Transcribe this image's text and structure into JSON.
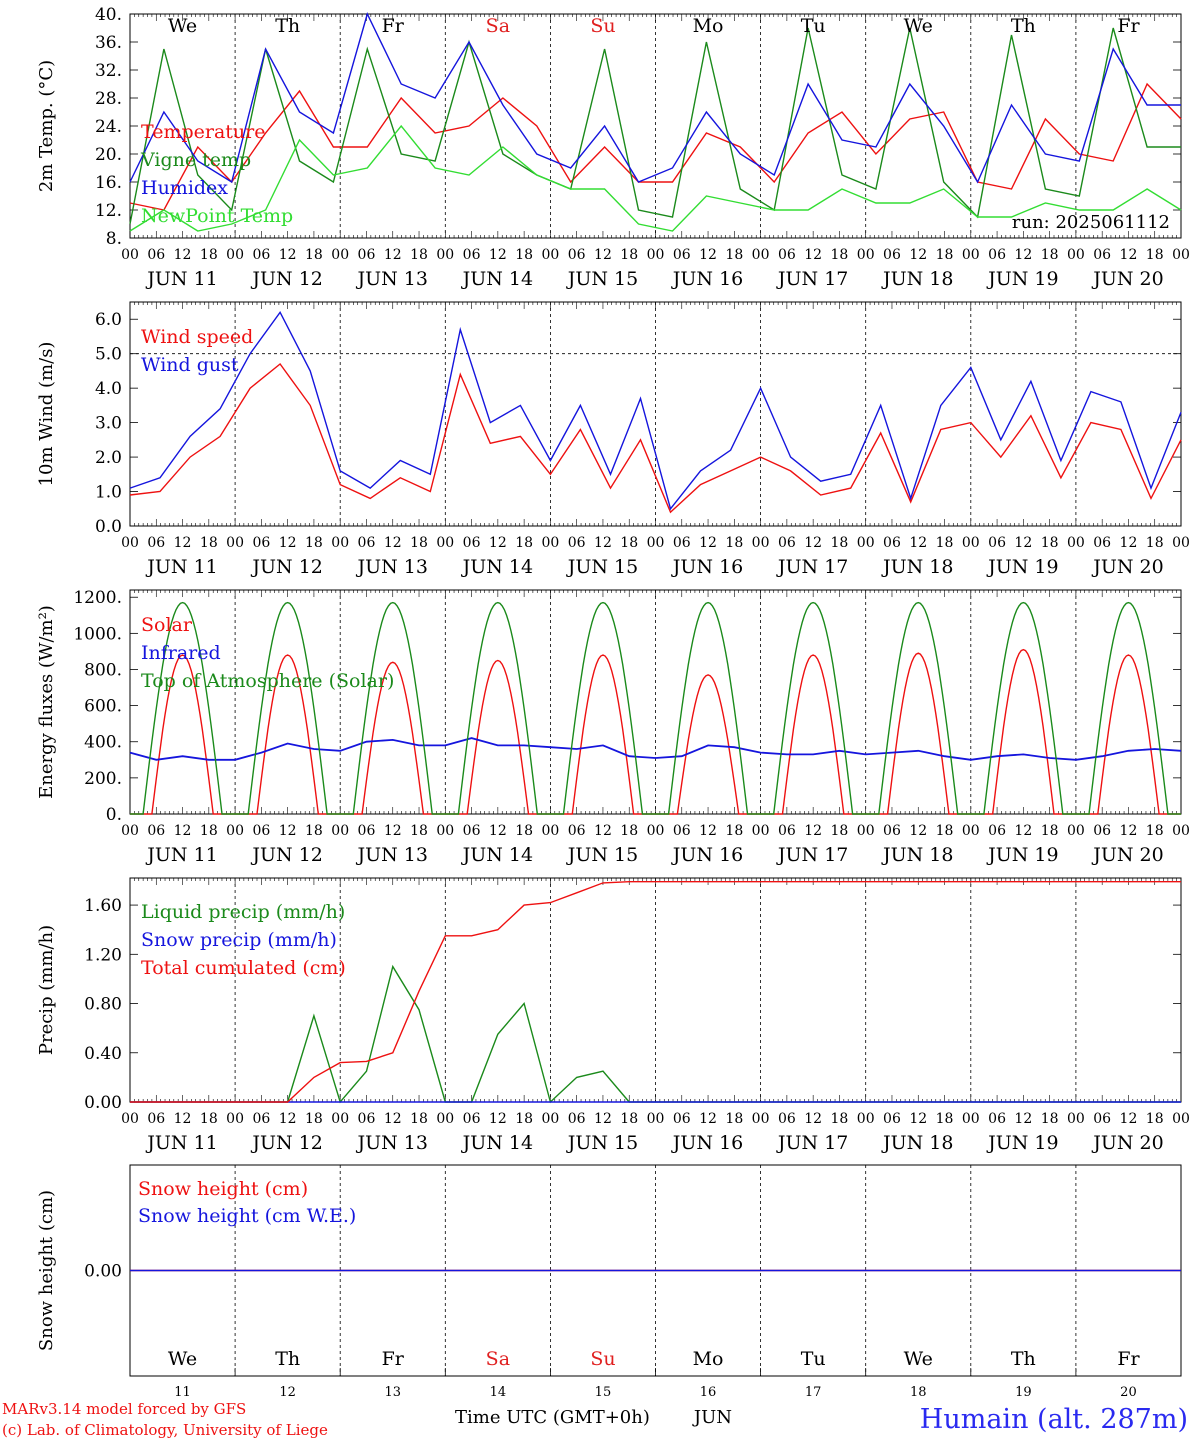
{
  "days": [
    "11",
    "12",
    "13",
    "14",
    "15",
    "16",
    "17",
    "18",
    "19",
    "20"
  ],
  "month": "JUN",
  "weekdays": [
    "We",
    "Th",
    "Fr",
    "Sa",
    "Su",
    "Mo",
    "Tu",
    "We",
    "Th",
    "Fr"
  ],
  "weekday_colors": [
    "#000000",
    "#000000",
    "#000000",
    "#e02020",
    "#e02020",
    "#000000",
    "#000000",
    "#000000",
    "#000000",
    "#000000"
  ],
  "hour_labels": [
    "00",
    "06",
    "12",
    "18"
  ],
  "run_label": "run: 2025061112",
  "footer": {
    "model": "MARv3.14 model forced by GFS",
    "copyright": "(c) Lab. of Climatology, University of Liege",
    "time_axis": "Time UTC (GMT+0h)",
    "month": "JUN",
    "station": "Humain (alt. 287m)"
  },
  "colors": {
    "red": "#ee1111",
    "green": "#1b8a1b",
    "blue": "#1515dd",
    "lightgreen": "#33dd33"
  },
  "chart_data": [
    {
      "type": "line",
      "ylabel": "2m Temp. (°C)",
      "ylim": [
        8,
        40
      ],
      "yticks": [
        "40.",
        "36.",
        "32.",
        "28.",
        "24.",
        "20.",
        "16.",
        "12.",
        "8."
      ],
      "hours_per_point": 6,
      "series": [
        {
          "name": "Temperature",
          "color": "red",
          "values": [
            13,
            12,
            21,
            16,
            23,
            29,
            21,
            21,
            28,
            23,
            24,
            28,
            24,
            16,
            21,
            16,
            16,
            23,
            21,
            16,
            23,
            26,
            20,
            25,
            26,
            16,
            15,
            25,
            20,
            19,
            30,
            25
          ]
        },
        {
          "name": "Vigne temp",
          "color": "green",
          "values": [
            10,
            35,
            17,
            12,
            35,
            19,
            16,
            35,
            20,
            19,
            36,
            20,
            17,
            15,
            35,
            12,
            11,
            36,
            15,
            12,
            38,
            17,
            15,
            38,
            16,
            11,
            37,
            15,
            14,
            38,
            21,
            21
          ]
        },
        {
          "name": "Humidex",
          "color": "blue",
          "values": [
            16,
            26,
            19,
            16,
            35,
            26,
            23,
            40,
            30,
            28,
            36,
            27,
            20,
            18,
            24,
            16,
            18,
            26,
            20,
            17,
            30,
            22,
            21,
            30,
            24,
            16,
            27,
            20,
            19,
            35,
            27,
            27
          ]
        },
        {
          "name": "NewPoint Temp",
          "color": "lightgreen",
          "values": [
            9,
            12,
            9,
            10,
            12,
            22,
            17,
            18,
            24,
            18,
            17,
            21,
            17,
            15,
            15,
            10,
            9,
            14,
            13,
            12,
            12,
            15,
            13,
            13,
            15,
            11,
            11,
            13,
            12,
            12,
            15,
            12
          ]
        }
      ]
    },
    {
      "type": "line",
      "ylabel": "10m Wind (m/s)",
      "ylim": [
        0,
        6.5
      ],
      "yticks": [
        "6.0",
        "5.0",
        "4.0",
        "3.0",
        "2.0",
        "1.0",
        "0.0"
      ],
      "refline": 5.0,
      "hours_per_point": 6,
      "series": [
        {
          "name": "Wind speed",
          "color": "red",
          "values": [
            0.9,
            1.0,
            2.0,
            2.6,
            4.0,
            4.7,
            3.5,
            1.2,
            0.8,
            1.4,
            1.0,
            4.4,
            2.4,
            2.6,
            1.5,
            2.8,
            1.1,
            2.5,
            0.4,
            1.2,
            1.6,
            2.0,
            1.6,
            0.9,
            1.1,
            2.7,
            0.7,
            2.8,
            3.0,
            2.0,
            3.2,
            1.4,
            3.0,
            2.8,
            0.8,
            2.5
          ]
        },
        {
          "name": "Wind gust",
          "color": "blue",
          "values": [
            1.1,
            1.4,
            2.6,
            3.4,
            5.0,
            6.2,
            4.5,
            1.6,
            1.1,
            1.9,
            1.5,
            5.7,
            3.0,
            3.5,
            1.9,
            3.5,
            1.5,
            3.7,
            0.5,
            1.6,
            2.2,
            4.0,
            2.0,
            1.3,
            1.5,
            3.5,
            0.8,
            3.5,
            4.6,
            2.5,
            4.2,
            1.9,
            3.9,
            3.6,
            1.1,
            3.3
          ]
        }
      ]
    },
    {
      "type": "line",
      "ylabel": "Energy fluxes (W/m²)",
      "ylim": [
        0,
        1240
      ],
      "yticks": [
        "1200.",
        "1000.",
        "800.",
        "600.",
        "400.",
        "200.",
        "0."
      ],
      "series": [
        {
          "name": "Solar",
          "color": "red",
          "daily_peak": [
            880,
            880,
            840,
            850,
            880,
            770,
            880,
            890,
            910,
            880
          ],
          "peak_hour": 12
        },
        {
          "name": "Infrared",
          "color": "blue",
          "values": [
            340,
            300,
            320,
            300,
            300,
            340,
            390,
            360,
            350,
            400,
            410,
            380,
            380,
            420,
            380,
            380,
            370,
            360,
            380,
            320,
            310,
            320,
            380,
            370,
            340,
            330,
            330,
            350,
            330,
            340,
            350,
            320,
            300,
            320,
            330,
            310,
            300,
            320,
            350,
            360,
            350
          ]
        },
        {
          "name": "Top of Atmosphere (Solar)",
          "color": "green",
          "daily_peak": [
            1170,
            1170,
            1170,
            1170,
            1170,
            1170,
            1170,
            1170,
            1170,
            1170
          ],
          "peak_hour": 12
        }
      ]
    },
    {
      "type": "line",
      "ylabel": "Precip (mm/h)",
      "ylim": [
        0,
        1.82
      ],
      "yticks": [
        "1.60",
        "1.20",
        "0.80",
        "0.40",
        "0.00"
      ],
      "hours_per_point": 6,
      "series": [
        {
          "name": "Liquid precip (mm/h)",
          "color": "green",
          "values": [
            0,
            0,
            0,
            0,
            0,
            0,
            0,
            0.7,
            0,
            0.25,
            1.1,
            0.75,
            0,
            0,
            0.55,
            0.8,
            0,
            0.2,
            0.25,
            0,
            0,
            0,
            0,
            0,
            0,
            0,
            0,
            0,
            0,
            0,
            0,
            0,
            0,
            0,
            0,
            0,
            0,
            0,
            0,
            0,
            0
          ]
        },
        {
          "name": "Snow precip (mm/h)",
          "color": "blue",
          "values": [
            0,
            0,
            0,
            0,
            0,
            0,
            0,
            0,
            0,
            0,
            0,
            0,
            0,
            0,
            0,
            0,
            0,
            0,
            0,
            0,
            0,
            0,
            0,
            0,
            0,
            0,
            0,
            0,
            0,
            0,
            0,
            0,
            0,
            0,
            0,
            0,
            0,
            0,
            0,
            0,
            0
          ]
        },
        {
          "name": "Total cumulated (cm)",
          "color": "red",
          "values": [
            0,
            0,
            0,
            0,
            0,
            0,
            0,
            0.2,
            0.32,
            0.33,
            0.4,
            0.9,
            1.35,
            1.35,
            1.4,
            1.6,
            1.62,
            1.7,
            1.78,
            1.79,
            1.79,
            1.79,
            1.79,
            1.79,
            1.79,
            1.79,
            1.79,
            1.79,
            1.79,
            1.79,
            1.79,
            1.79,
            1.79,
            1.79,
            1.79,
            1.79,
            1.79,
            1.79,
            1.79,
            1.79,
            1.79
          ]
        }
      ]
    },
    {
      "type": "line",
      "ylabel": "Snow height (cm)",
      "ylim": [
        -1,
        1
      ],
      "yticks": [
        "0.00"
      ],
      "series": [
        {
          "name": "Snow height (cm)",
          "color": "red",
          "values": [
            0,
            0
          ]
        },
        {
          "name": "Snow height (cm W.E.)",
          "color": "blue",
          "values": [
            0,
            0
          ]
        }
      ]
    }
  ]
}
